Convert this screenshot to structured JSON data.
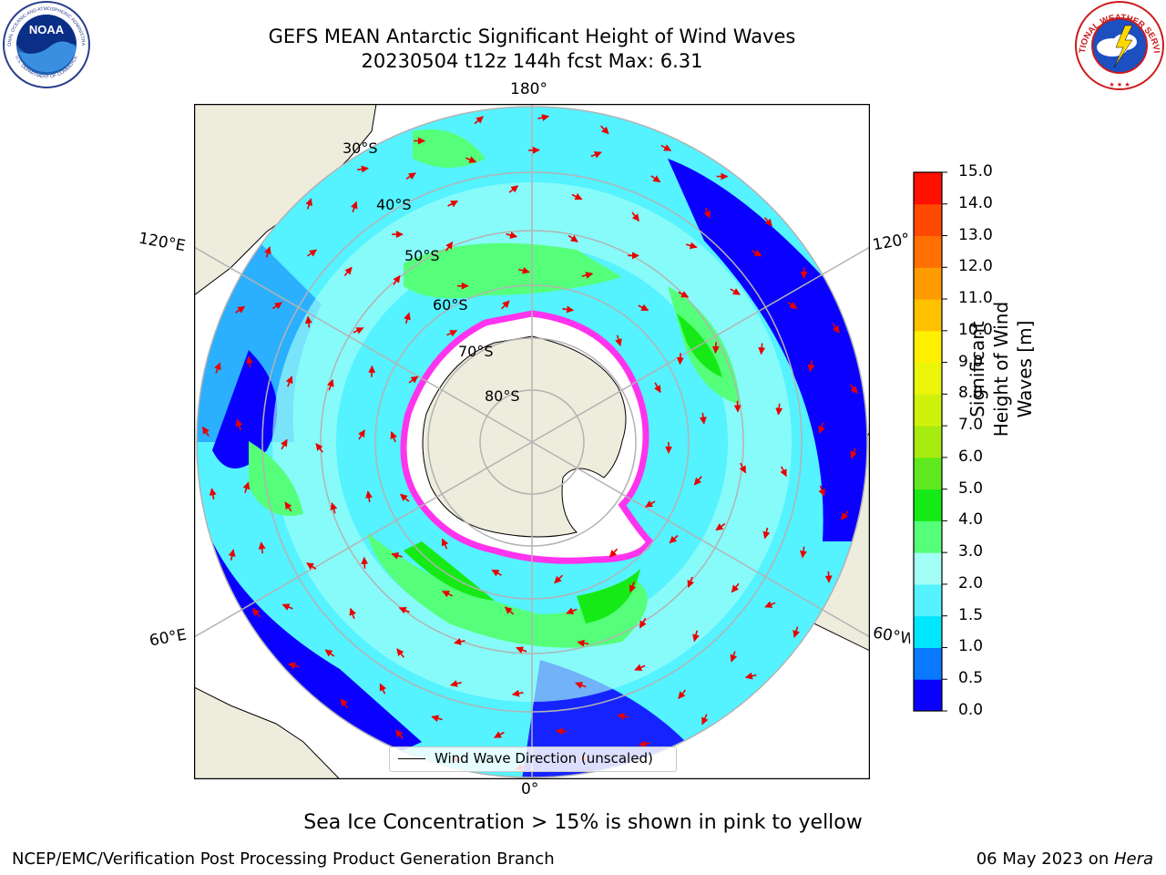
{
  "title": {
    "line1": "GEFS MEAN Antarctic Significant Height of Wind Waves",
    "line2": "20230504 t12z 144h fcst   Max: 6.31"
  },
  "map": {
    "lon_labels": {
      "top": "180°",
      "bottom": "0°",
      "upper_left": "120°E",
      "upper_right": "120°W",
      "lower_left": "60°E",
      "lower_right": "60°W"
    },
    "lat_labels": [
      "30°S",
      "40°S",
      "50°S",
      "60°S",
      "70°S",
      "80°S"
    ],
    "legend": {
      "label": "Wind Wave Direction (unscaled)"
    },
    "colors": {
      "land": "#eeecdc",
      "ice": "#ffffff",
      "ice_edge": "#ff33ee",
      "arrow": "#e80000",
      "grid": "#b3b3b3"
    }
  },
  "colorbar": {
    "title": "Significant Height of Wind Waves [m]",
    "ticks": [
      "0.0",
      "0.5",
      "1.0",
      "1.5",
      "2.0",
      "3.0",
      "4.0",
      "5.0",
      "6.0",
      "7.0",
      "8.0",
      "9.0",
      "10.0",
      "11.0",
      "12.0",
      "13.0",
      "14.0",
      "15.0"
    ],
    "colors": [
      "#0a00ff",
      "#0a78ff",
      "#00e6ff",
      "#55f2ff",
      "#a3fff6",
      "#55ff7a",
      "#16ea16",
      "#5fe81e",
      "#a6ec10",
      "#cff20d",
      "#ecf40a",
      "#fff000",
      "#ffc000",
      "#ff9a00",
      "#ff7000",
      "#ff4800",
      "#ff1000"
    ]
  },
  "caption": "Sea Ice Concentration > 15% is shown in pink to yellow",
  "footer": {
    "left": "NCEP/EMC/Verification Post Processing Product Generation Branch",
    "right_prefix": "06 May 2023 on ",
    "right_host": "Hera"
  },
  "logos": {
    "noaa": {
      "label": "NOAA",
      "ring_text": "NATIONAL OCEANIC AND ATMOSPHERIC ADMINISTRATION",
      "ring_text_bottom": "U.S. DEPARTMENT OF COMMERCE"
    },
    "nws": {
      "ring_text": "NATIONAL WEATHER SERVICE"
    }
  }
}
